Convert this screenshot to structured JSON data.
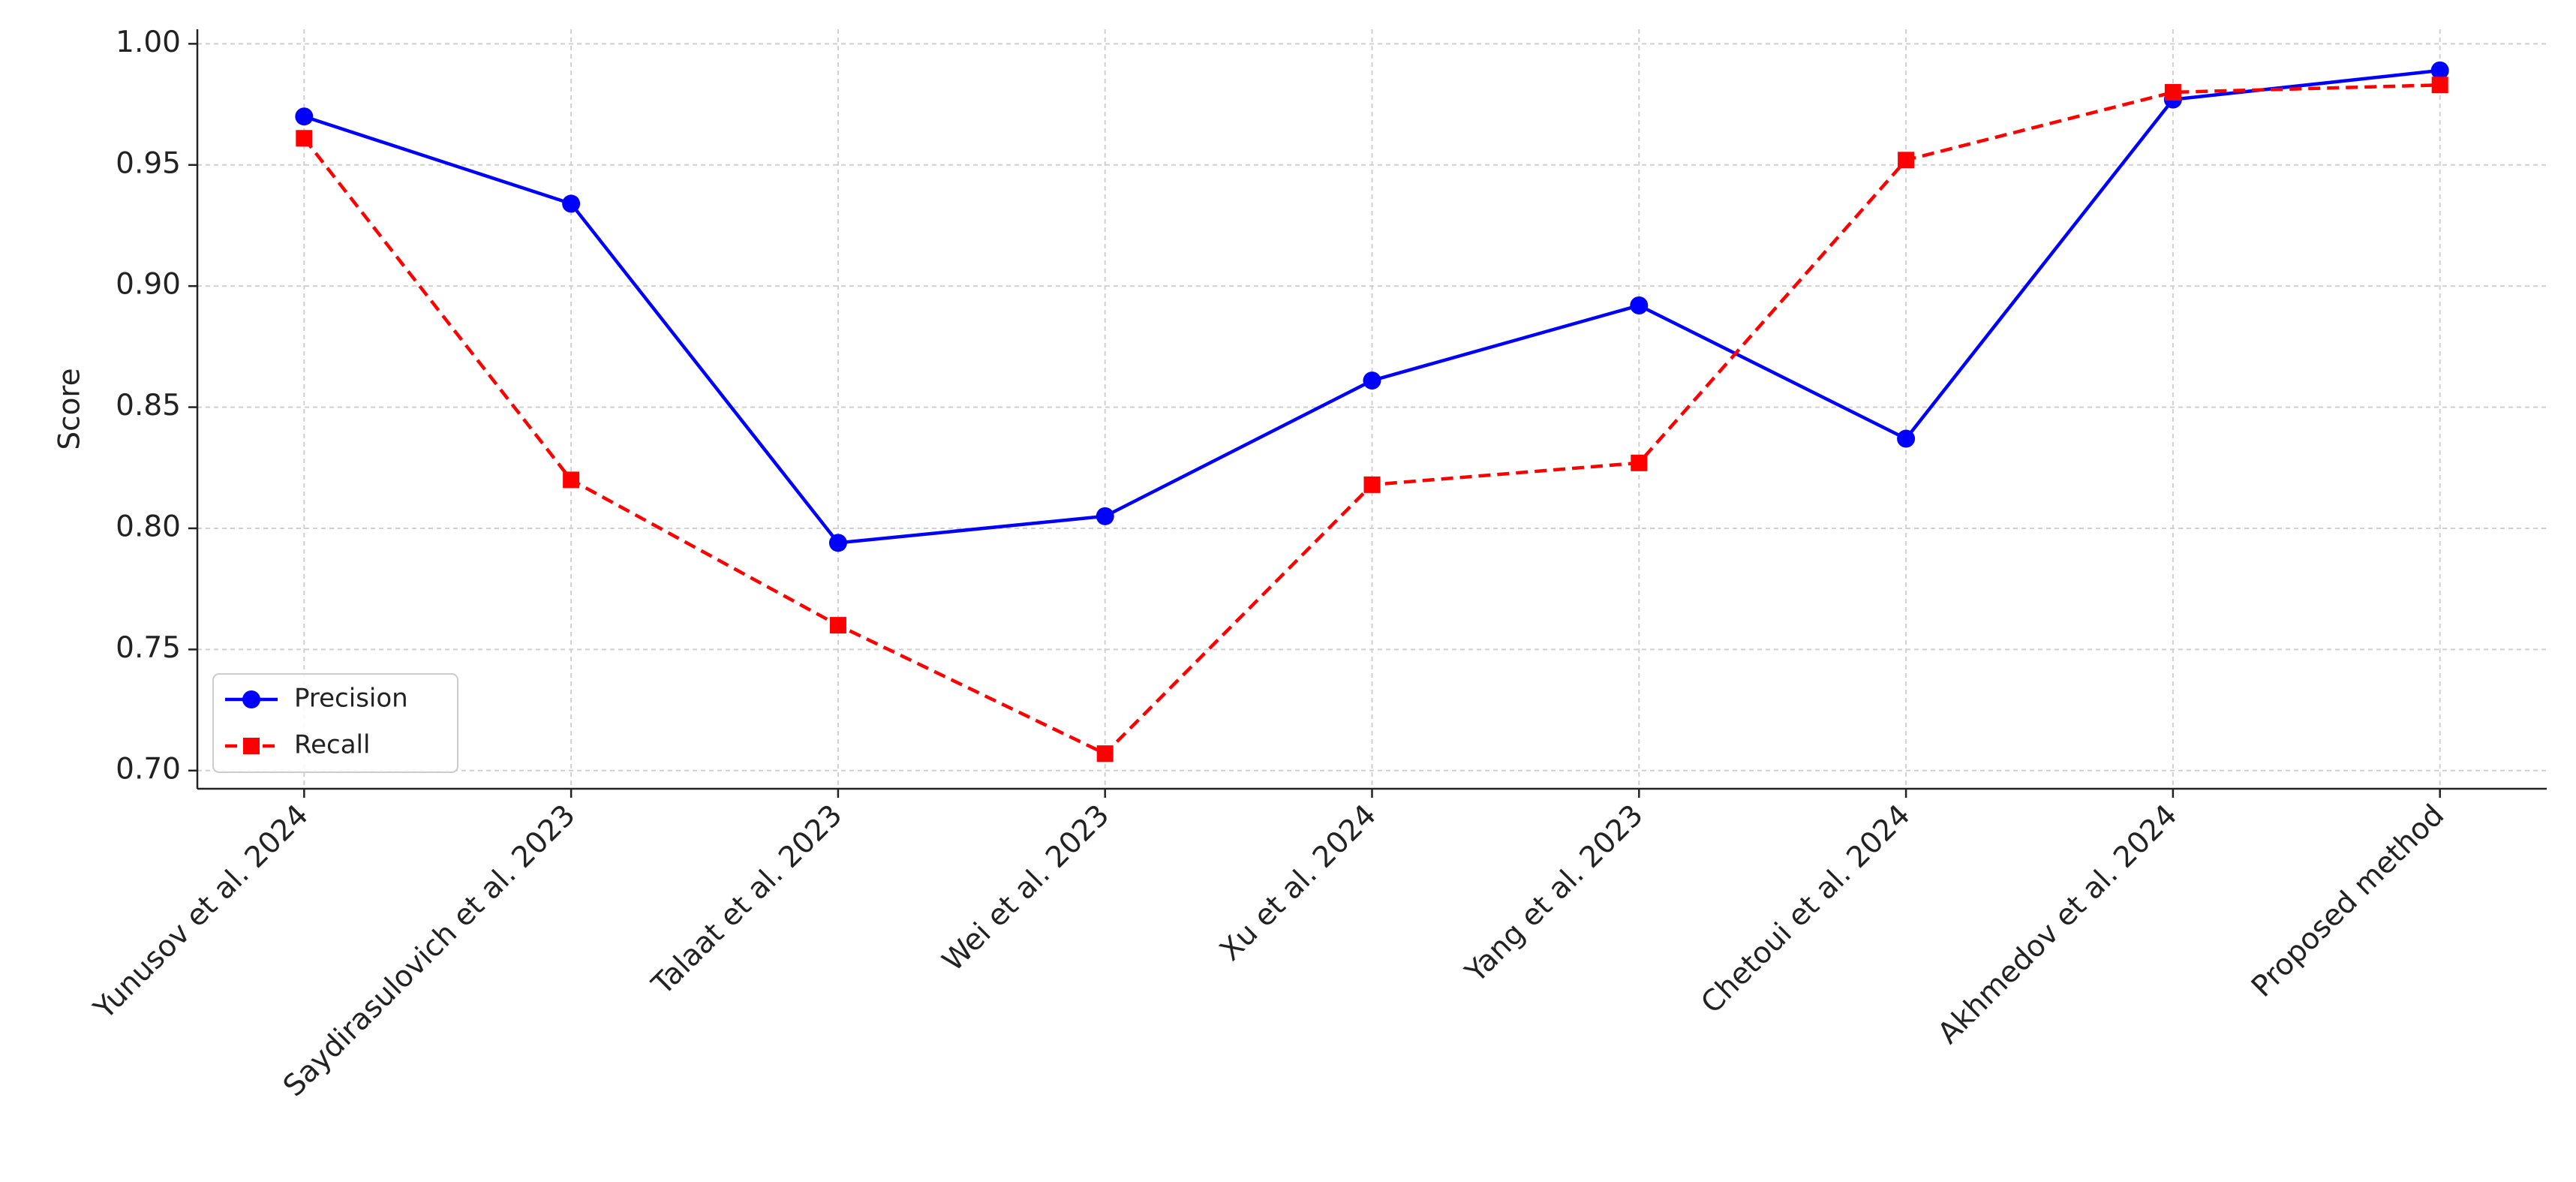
{
  "chart_data": {
    "type": "line",
    "ylabel": "Score",
    "categories": [
      "Yunusov et al. 2024",
      "Saydirasulovich et al. 2023",
      "Talaat et al. 2023",
      "Wei et al. 2023",
      "Xu et al. 2024",
      "Yang et al. 2023",
      "Chetoui et al. 2024",
      "Akhmedov et al. 2024",
      "Proposed method"
    ],
    "series": [
      {
        "name": "Precision",
        "color": "#0000ff",
        "linestyle": "solid",
        "marker": "circle",
        "values": [
          0.97,
          0.934,
          0.794,
          0.805,
          0.861,
          0.892,
          0.837,
          0.977,
          0.989
        ]
      },
      {
        "name": "Recall",
        "color": "#ff0000",
        "linestyle": "dashed",
        "marker": "square",
        "values": [
          0.961,
          0.82,
          0.76,
          0.707,
          0.818,
          0.827,
          0.952,
          0.98,
          0.983
        ]
      }
    ],
    "ylim": [
      0.6925,
      1.006
    ],
    "yticks": [
      {
        "value": 0.7,
        "label": "0.70"
      },
      0.75,
      {
        "value": 0.8,
        "label": "0.80"
      },
      0.85,
      {
        "value": 0.9,
        "label": "0.90"
      },
      0.95,
      {
        "value": 1.0,
        "label": "1.00"
      }
    ],
    "grid": true,
    "legend": "lower left"
  }
}
